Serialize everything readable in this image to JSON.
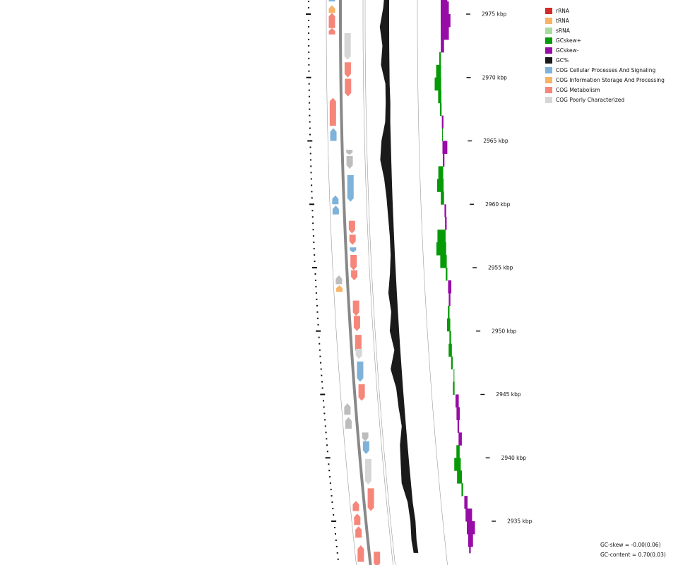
{
  "colors": {
    "rRNA": "#d42a2a",
    "tRNA": "#f7b366",
    "sRNA": "#a6dba0",
    "gcskew_pos": "#079a07",
    "gcskew_neg": "#970ca6",
    "gc": "#1a1a1a",
    "cog_cellular": "#7fb2d9",
    "cog_info": "#f7b366",
    "cog_metabolism": "#f6867a",
    "cog_poor": "#d6d6d6",
    "strand_minus_gray": "#bdbdbd",
    "backbone": "#888888",
    "ring": "#999999"
  },
  "legend": [
    {
      "key": "rRNA",
      "label": "rRNA"
    },
    {
      "key": "tRNA",
      "label": "tRNA"
    },
    {
      "key": "sRNA",
      "label": "sRNA"
    },
    {
      "key": "gcskew_pos",
      "label": "GCskew+"
    },
    {
      "key": "gcskew_neg",
      "label": "GCskew-"
    },
    {
      "key": "gc",
      "label": "GC%"
    },
    {
      "key": "cog_cellular",
      "label": "COG Cellular Processes And Signaling"
    },
    {
      "key": "cog_info",
      "label": "COG Information Storage And Processing"
    },
    {
      "key": "cog_metabolism",
      "label": "COG Metabolism"
    },
    {
      "key": "cog_poor",
      "label": "COG Poorly Characterized"
    }
  ],
  "stats": {
    "gc_skew": "GC-skew = -0.00(0.06)",
    "gc_content": "GC-content = 0.70(0.03)"
  },
  "axis": {
    "labels": [
      "2975 kbp",
      "2970 kbp",
      "2965 kbp",
      "2960 kbp",
      "2955 kbp",
      "2950 kbp",
      "2945 kbp",
      "2940 kbp",
      "2935 kbp"
    ],
    "kbp_values": [
      2975,
      2970,
      2965,
      2960,
      2955,
      2950,
      2945,
      2940,
      2935
    ]
  },
  "features": {
    "minus_strand": [
      {
        "kbp": 2976.4,
        "len": 0.4,
        "cat": "cog_cellular"
      },
      {
        "kbp": 2975.7,
        "len": 0.6,
        "cat": "cog_info"
      },
      {
        "kbp": 2975.1,
        "len": 1.2,
        "cat": "cog_metabolism"
      },
      {
        "kbp": 2973.9,
        "len": 0.5,
        "cat": "cog_metabolism"
      },
      {
        "kbp": 2968.4,
        "len": 2.2,
        "cat": "cog_metabolism"
      },
      {
        "kbp": 2966.0,
        "len": 1.0,
        "cat": "cog_cellular"
      },
      {
        "kbp": 2960.7,
        "len": 0.7,
        "cat": "cog_cellular"
      },
      {
        "kbp": 2959.9,
        "len": 0.7,
        "cat": "cog_cellular"
      },
      {
        "kbp": 2954.4,
        "len": 0.7,
        "cat": "strand_minus_gray"
      },
      {
        "kbp": 2953.6,
        "len": 0.5,
        "cat": "cog_info"
      },
      {
        "kbp": 2944.3,
        "len": 0.9,
        "cat": "strand_minus_gray"
      },
      {
        "kbp": 2943.2,
        "len": 0.9,
        "cat": "strand_minus_gray"
      },
      {
        "kbp": 2936.6,
        "len": 0.8,
        "cat": "cog_metabolism"
      },
      {
        "kbp": 2935.6,
        "len": 0.9,
        "cat": "cog_metabolism"
      },
      {
        "kbp": 2934.6,
        "len": 0.9,
        "cat": "cog_metabolism"
      },
      {
        "kbp": 2933.1,
        "len": 1.3,
        "cat": "cog_metabolism"
      }
    ],
    "plus_strand": [
      {
        "kbp": 2973.5,
        "len": 2.1,
        "cat": "cog_poor"
      },
      {
        "kbp": 2971.2,
        "len": 1.2,
        "cat": "cog_metabolism"
      },
      {
        "kbp": 2969.9,
        "len": 1.4,
        "cat": "cog_metabolism"
      },
      {
        "kbp": 2964.3,
        "len": 0.4,
        "cat": "strand_minus_gray"
      },
      {
        "kbp": 2963.8,
        "len": 1.0,
        "cat": "strand_minus_gray"
      },
      {
        "kbp": 2962.3,
        "len": 2.1,
        "cat": "cog_cellular"
      },
      {
        "kbp": 2958.7,
        "len": 1.0,
        "cat": "cog_metabolism"
      },
      {
        "kbp": 2957.6,
        "len": 0.8,
        "cat": "cog_metabolism"
      },
      {
        "kbp": 2956.6,
        "len": 0.4,
        "cat": "cog_cellular"
      },
      {
        "kbp": 2956.0,
        "len": 1.2,
        "cat": "cog_metabolism"
      },
      {
        "kbp": 2954.8,
        "len": 0.8,
        "cat": "cog_metabolism"
      },
      {
        "kbp": 2952.4,
        "len": 1.2,
        "cat": "cog_metabolism"
      },
      {
        "kbp": 2951.2,
        "len": 1.2,
        "cat": "cog_metabolism"
      },
      {
        "kbp": 2949.7,
        "len": 1.5,
        "cat": "cog_metabolism"
      },
      {
        "kbp": 2948.6,
        "len": 0.8,
        "cat": "cog_poor"
      },
      {
        "kbp": 2947.6,
        "len": 1.6,
        "cat": "cog_cellular"
      },
      {
        "kbp": 2945.8,
        "len": 1.3,
        "cat": "cog_metabolism"
      },
      {
        "kbp": 2942.0,
        "len": 0.7,
        "cat": "strand_minus_gray"
      },
      {
        "kbp": 2941.3,
        "len": 1.0,
        "cat": "cog_cellular"
      },
      {
        "kbp": 2939.9,
        "len": 2.0,
        "cat": "cog_poor"
      },
      {
        "kbp": 2937.6,
        "len": 1.8,
        "cat": "cog_metabolism"
      },
      {
        "kbp": 2932.6,
        "len": 1.2,
        "cat": "cog_metabolism"
      }
    ]
  },
  "chart_data": {
    "type": "area",
    "x_unit": "kbp",
    "gc_content": {
      "x": [
        2977.0,
        2975.5,
        2974.0,
        2972.5,
        2971.0,
        2969.5,
        2968.0,
        2966.5,
        2965.0,
        2963.5,
        2962.0,
        2960.5,
        2959.0,
        2957.5,
        2956.0,
        2954.5,
        2953.0,
        2951.5,
        2950.0,
        2948.5,
        2947.0,
        2945.5,
        2944.0,
        2942.5,
        2941.0,
        2939.5,
        2938.0,
        2936.5,
        2935.0,
        2933.5,
        2932.5
      ],
      "values": [
        0.7,
        0.72,
        0.76,
        0.73,
        0.75,
        0.7,
        0.69,
        0.71,
        0.76,
        0.78,
        0.74,
        0.72,
        0.71,
        0.7,
        0.7,
        0.72,
        0.75,
        0.73,
        0.76,
        0.72,
        0.78,
        0.73,
        0.72,
        0.7,
        0.74,
        0.75,
        0.76,
        0.71,
        0.68,
        0.71,
        0.69
      ]
    },
    "gc_skew": {
      "x": [
        2977.0,
        2976.0,
        2975.0,
        2974.0,
        2973.0,
        2972.0,
        2971.0,
        2970.0,
        2969.0,
        2968.0,
        2967.0,
        2966.0,
        2965.0,
        2964.0,
        2963.0,
        2962.0,
        2961.0,
        2960.0,
        2959.0,
        2958.0,
        2957.0,
        2956.0,
        2955.0,
        2954.0,
        2953.0,
        2952.0,
        2951.0,
        2950.0,
        2949.0,
        2948.0,
        2947.0,
        2946.0,
        2945.0,
        2944.0,
        2943.0,
        2942.0,
        2941.0,
        2940.0,
        2939.0,
        2938.0,
        2937.0,
        2936.0,
        2935.0,
        2934.0,
        2933.0,
        2932.5
      ],
      "values": [
        -0.04,
        -0.05,
        -0.06,
        -0.05,
        -0.02,
        0.01,
        0.03,
        0.04,
        0.02,
        0.01,
        -0.01,
        0.0,
        -0.03,
        -0.01,
        0.03,
        0.04,
        0.02,
        -0.01,
        -0.01,
        0.05,
        0.06,
        0.04,
        0.01,
        -0.02,
        -0.01,
        0.01,
        0.02,
        0.01,
        0.02,
        0.01,
        0.0,
        0.01,
        -0.02,
        -0.02,
        -0.01,
        -0.02,
        0.02,
        0.04,
        0.03,
        0.01,
        -0.02,
        -0.04,
        -0.05,
        -0.03,
        -0.01,
        0.01
      ]
    }
  }
}
